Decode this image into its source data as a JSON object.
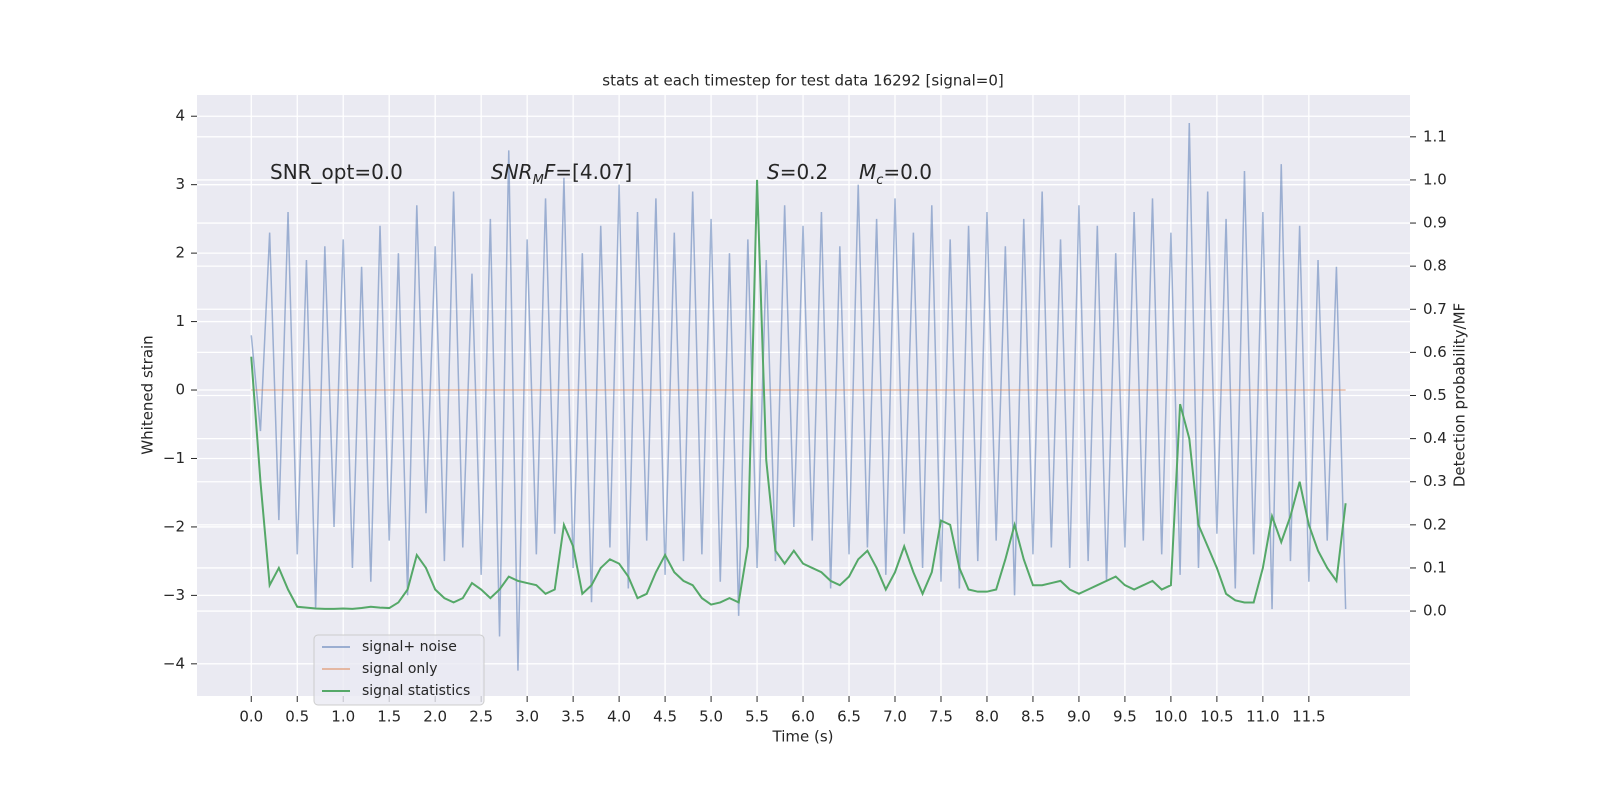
{
  "chart_data": {
    "type": "line",
    "title": "stats at each timestep for test data 16292 [signal=0]",
    "x_label": "Time (s)",
    "y_label": "Whitened strain",
    "y2_label": "Detection probability/MF",
    "grid": true,
    "legend": "lower left",
    "xlim": [
      -0.59,
      12.6
    ],
    "ylim": [
      -4.47,
      4.31
    ],
    "y2lim": [
      -0.197,
      1.197
    ],
    "xticks": [
      {
        "value": 0,
        "label": "0.0"
      },
      {
        "value": 0.5,
        "label": "0.5"
      },
      {
        "value": 1,
        "label": "1.0"
      },
      {
        "value": 1.5,
        "label": "1.5"
      },
      {
        "value": 2,
        "label": "2.0"
      },
      {
        "value": 2.5,
        "label": "2.5"
      },
      {
        "value": 3,
        "label": "3.0"
      },
      {
        "value": 3.5,
        "label": "3.5"
      },
      {
        "value": 4,
        "label": "4.0"
      },
      {
        "value": 4.5,
        "label": "4.5"
      },
      {
        "value": 5,
        "label": "5.0"
      },
      {
        "value": 5.5,
        "label": "5.5"
      },
      {
        "value": 6,
        "label": "6.0"
      },
      {
        "value": 6.5,
        "label": "6.5"
      },
      {
        "value": 7,
        "label": "7.0"
      },
      {
        "value": 7.5,
        "label": "7.5"
      },
      {
        "value": 8,
        "label": "8.0"
      },
      {
        "value": 8.5,
        "label": "8.5"
      },
      {
        "value": 9,
        "label": "9.0"
      },
      {
        "value": 9.5,
        "label": "9.5"
      },
      {
        "value": 10,
        "label": "10.0"
      },
      {
        "value": 10.5,
        "label": "10.5"
      },
      {
        "value": 11,
        "label": "11.0"
      },
      {
        "value": 11.5,
        "label": "11.5"
      }
    ],
    "yticks": [
      {
        "value": -4,
        "label": "−4"
      },
      {
        "value": -3,
        "label": "−3"
      },
      {
        "value": -2,
        "label": "−2"
      },
      {
        "value": -1,
        "label": "−1"
      },
      0,
      1,
      2,
      3,
      4
    ],
    "y2ticks": [
      {
        "value": 0,
        "label": "0.0"
      },
      {
        "value": 0.1,
        "label": "0.1"
      },
      {
        "value": 0.2,
        "label": "0.2"
      },
      {
        "value": 0.3,
        "label": "0.3"
      },
      {
        "value": 0.4,
        "label": "0.4"
      },
      {
        "value": 0.5,
        "label": "0.5"
      },
      {
        "value": 0.6,
        "label": "0.6"
      },
      {
        "value": 0.7,
        "label": "0.7"
      },
      {
        "value": 0.8,
        "label": "0.8"
      },
      {
        "value": 0.9,
        "label": "0.9"
      },
      {
        "value": 1,
        "label": "1.0"
      },
      {
        "value": 1.1,
        "label": "1.1"
      }
    ],
    "annotations": [
      [
        {
          "text": "SNR_opt=0.0"
        }
      ],
      [
        {
          "text": "SNR",
          "italic": true
        },
        {
          "text": "M",
          "italic": true,
          "sub": true
        },
        {
          "text": "F",
          "italic": true
        },
        {
          "text": "=[4.07]"
        }
      ],
      [
        {
          "text": "S",
          "italic": true
        },
        {
          "text": "=0.2"
        }
      ],
      [
        {
          "text": "M",
          "italic": true
        },
        {
          "text": "c",
          "italic": true,
          "sub": true
        },
        {
          "text": "=0.0"
        }
      ]
    ],
    "x": [
      0,
      0.1,
      0.2,
      0.3,
      0.4,
      0.5,
      0.6,
      0.7,
      0.8,
      0.9,
      1,
      1.1,
      1.2,
      1.3,
      1.4,
      1.5,
      1.6,
      1.7,
      1.8,
      1.9,
      2,
      2.1,
      2.2,
      2.3,
      2.4,
      2.5,
      2.6,
      2.7,
      2.8,
      2.9,
      3,
      3.1,
      3.2,
      3.3,
      3.4,
      3.5,
      3.6,
      3.7,
      3.8,
      3.9,
      4,
      4.1,
      4.2,
      4.3,
      4.4,
      4.5,
      4.6,
      4.7,
      4.8,
      4.9,
      5,
      5.1,
      5.2,
      5.3,
      5.4,
      5.5,
      5.6,
      5.7,
      5.8,
      5.9,
      6,
      6.1,
      6.2,
      6.3,
      6.4,
      6.5,
      6.6,
      6.7,
      6.8,
      6.9,
      7,
      7.1,
      7.2,
      7.3,
      7.4,
      7.5,
      7.6,
      7.7,
      7.8,
      7.9,
      8,
      8.1,
      8.2,
      8.3,
      8.4,
      8.5,
      8.6,
      8.7,
      8.8,
      8.9,
      9,
      9.1,
      9.2,
      9.3,
      9.4,
      9.5,
      9.6,
      9.7,
      9.8,
      9.9,
      10,
      10.1,
      10.2,
      10.3,
      10.4,
      10.5,
      10.6,
      10.7,
      10.8,
      10.9,
      11,
      11.1,
      11.2,
      11.3,
      11.4,
      11.5,
      11.6,
      11.7,
      11.8,
      11.9
    ],
    "series": [
      {
        "name": "signal+ noise",
        "color": "#4c72b0",
        "opacity": 0.5,
        "values": [
          0.8,
          -0.6,
          2.3,
          -1.9,
          2.6,
          -2.4,
          1.9,
          -3.2,
          2.1,
          -2.0,
          2.2,
          -2.6,
          1.8,
          -2.8,
          2.4,
          -2.2,
          2.0,
          -3.0,
          2.7,
          -1.8,
          2.1,
          -2.5,
          2.9,
          -2.3,
          1.7,
          -2.7,
          2.5,
          -3.6,
          3.5,
          -4.1,
          2.2,
          -2.4,
          2.8,
          -2.1,
          3.1,
          -2.6,
          2.0,
          -3.1,
          2.4,
          -2.3,
          3.0,
          -2.9,
          2.6,
          -2.2,
          2.8,
          -2.7,
          2.3,
          -2.5,
          2.9,
          -2.4,
          2.5,
          -2.8,
          2.0,
          -3.3,
          2.2,
          -2.6,
          1.9,
          -2.5,
          2.7,
          -2.0,
          2.4,
          -2.2,
          2.6,
          -2.9,
          2.1,
          -2.4,
          3.0,
          -2.3,
          2.5,
          -2.7,
          2.8,
          -2.1,
          2.3,
          -2.6,
          2.7,
          -2.8,
          2.2,
          -2.9,
          2.4,
          -2.5,
          2.6,
          -2.2,
          2.1,
          -3.0,
          2.5,
          -2.4,
          2.9,
          -2.3,
          2.2,
          -2.6,
          2.7,
          -2.5,
          2.4,
          -2.8,
          2.0,
          -2.3,
          2.6,
          -2.2,
          2.8,
          -2.4,
          2.3,
          -2.7,
          3.9,
          -2.6,
          2.9,
          -2.1,
          2.5,
          -2.9,
          3.2,
          -2.4,
          2.6,
          -3.2,
          3.3,
          -2.5,
          2.4,
          -2.8,
          1.9,
          -2.2,
          1.8,
          -3.2
        ]
      },
      {
        "name": "signal only",
        "color": "#dd8452",
        "opacity": 0.5,
        "values": [
          0,
          0,
          0,
          0,
          0,
          0,
          0,
          0,
          0,
          0,
          0,
          0,
          0,
          0,
          0,
          0,
          0,
          0,
          0,
          0,
          0,
          0,
          0,
          0,
          0,
          0,
          0,
          0,
          0,
          0,
          0,
          0,
          0,
          0,
          0,
          0,
          0,
          0,
          0,
          0,
          0,
          0,
          0,
          0,
          0,
          0,
          0,
          0,
          0,
          0,
          0,
          0,
          0,
          0,
          0,
          0,
          0,
          0,
          0,
          0,
          0,
          0,
          0,
          0,
          0,
          0,
          0,
          0,
          0,
          0,
          0,
          0,
          0,
          0,
          0,
          0,
          0,
          0,
          0,
          0,
          0,
          0,
          0,
          0,
          0,
          0,
          0,
          0,
          0,
          0,
          0,
          0,
          0,
          0,
          0,
          0,
          0,
          0,
          0,
          0,
          0,
          0,
          0,
          0,
          0,
          0,
          0,
          0,
          0,
          0,
          0,
          0,
          0,
          0,
          0,
          0,
          0,
          0,
          0,
          0
        ]
      },
      {
        "name": "signal statistics",
        "color": "#55a868",
        "opacity": 1,
        "axis": "y2",
        "values": [
          0.59,
          0.3,
          0.06,
          0.1,
          0.05,
          0.01,
          0.008,
          0.006,
          0.005,
          0.005,
          0.006,
          0.005,
          0.007,
          0.01,
          0.008,
          0.007,
          0.02,
          0.05,
          0.13,
          0.1,
          0.05,
          0.03,
          0.02,
          0.03,
          0.065,
          0.05,
          0.03,
          0.05,
          0.08,
          0.07,
          0.065,
          0.06,
          0.04,
          0.05,
          0.2,
          0.15,
          0.04,
          0.06,
          0.1,
          0.12,
          0.11,
          0.08,
          0.03,
          0.04,
          0.09,
          0.13,
          0.09,
          0.07,
          0.06,
          0.03,
          0.015,
          0.02,
          0.03,
          0.02,
          0.15,
          1.0,
          0.35,
          0.14,
          0.11,
          0.14,
          0.11,
          0.1,
          0.09,
          0.07,
          0.06,
          0.08,
          0.12,
          0.14,
          0.1,
          0.05,
          0.09,
          0.15,
          0.09,
          0.04,
          0.09,
          0.21,
          0.2,
          0.1,
          0.05,
          0.045,
          0.045,
          0.05,
          0.12,
          0.2,
          0.12,
          0.06,
          0.06,
          0.065,
          0.07,
          0.05,
          0.04,
          0.05,
          0.06,
          0.07,
          0.08,
          0.06,
          0.05,
          0.06,
          0.07,
          0.05,
          0.06,
          0.48,
          0.4,
          0.2,
          0.15,
          0.1,
          0.04,
          0.025,
          0.02,
          0.02,
          0.1,
          0.22,
          0.16,
          0.22,
          0.3,
          0.2,
          0.14,
          0.1,
          0.07,
          0.25
        ]
      }
    ]
  }
}
